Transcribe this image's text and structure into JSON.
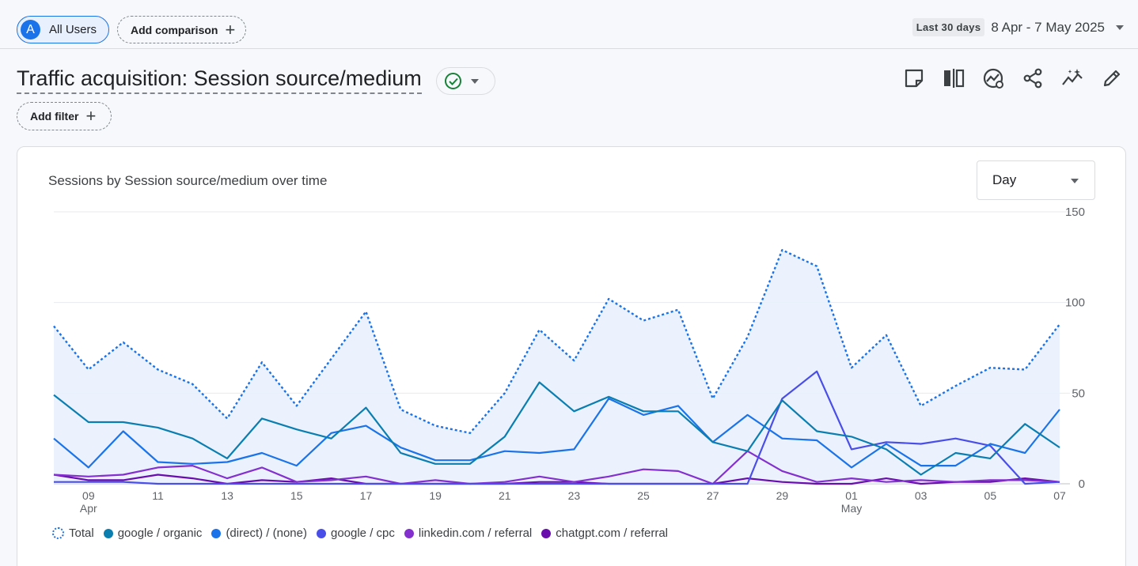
{
  "topbar": {
    "segment_avatar": "A",
    "segment_label": "All Users",
    "compare_label": "Add comparison",
    "date_preset": "Last 30 days",
    "date_range": "8 Apr - 7 May 2025"
  },
  "report": {
    "title": "Traffic acquisition: Session source/medium",
    "filter_label": "Add filter"
  },
  "card": {
    "title": "Sessions by Session source/medium over time",
    "granularity": "Day"
  },
  "chart_data": {
    "type": "line",
    "x": [
      "08",
      "09",
      "10",
      "11",
      "12",
      "13",
      "14",
      "15",
      "16",
      "17",
      "18",
      "19",
      "20",
      "21",
      "22",
      "23",
      "24",
      "25",
      "26",
      "27",
      "28",
      "29",
      "30",
      "01",
      "02",
      "03",
      "04",
      "05",
      "06",
      "07"
    ],
    "x_tick_labels": [
      "09",
      "11",
      "13",
      "15",
      "17",
      "19",
      "21",
      "23",
      "25",
      "27",
      "29",
      "01",
      "03",
      "05",
      "07"
    ],
    "x_month_labels": [
      {
        "at": "09",
        "label": "Apr"
      },
      {
        "at": "01",
        "label": "May"
      }
    ],
    "y_tick_labels": [
      "0",
      "50",
      "100",
      "150"
    ],
    "ylim": [
      0,
      150
    ],
    "series": [
      {
        "name": "Total",
        "style": "dotted",
        "color": "#1a73e8",
        "fill": true,
        "values": [
          87,
          63,
          78,
          63,
          55,
          36,
          67,
          43,
          69,
          95,
          41,
          32,
          28,
          50,
          85,
          68,
          102,
          90,
          96,
          47,
          81,
          129,
          120,
          64,
          82,
          43,
          54,
          64,
          63,
          88
        ]
      },
      {
        "name": "google / organic",
        "color": "#0b7eb0",
        "values": [
          49,
          34,
          34,
          31,
          25,
          14,
          36,
          30,
          25,
          42,
          17,
          11,
          11,
          26,
          56,
          40,
          48,
          40,
          40,
          23,
          18,
          46,
          29,
          26,
          19,
          5,
          17,
          14,
          33,
          20
        ]
      },
      {
        "name": "(direct) / (none)",
        "color": "#1a73e8",
        "values": [
          25,
          9,
          29,
          12,
          11,
          12,
          17,
          10,
          28,
          32,
          20,
          13,
          13,
          18,
          17,
          19,
          47,
          38,
          43,
          23,
          38,
          25,
          24,
          9,
          22,
          10,
          10,
          22,
          17,
          41
        ]
      },
      {
        "name": "google / cpc",
        "color": "#4a4ee8",
        "values": [
          1,
          1,
          1,
          0,
          0,
          0,
          0,
          0,
          0,
          0,
          0,
          0,
          0,
          0,
          0,
          0,
          0,
          0,
          0,
          0,
          0,
          47,
          62,
          19,
          23,
          22,
          25,
          21,
          0,
          1
        ]
      },
      {
        "name": "linkedin.com / referral",
        "color": "#8430ce",
        "values": [
          5,
          4,
          5,
          9,
          10,
          3,
          9,
          1,
          2,
          4,
          0,
          2,
          0,
          1,
          4,
          1,
          4,
          8,
          7,
          0,
          18,
          7,
          1,
          3,
          1,
          2,
          1,
          2,
          2,
          1
        ]
      },
      {
        "name": "chatgpt.com / referral",
        "color": "#6a0dad",
        "values": [
          5,
          2,
          2,
          5,
          3,
          0,
          2,
          1,
          3,
          0,
          0,
          0,
          0,
          0,
          1,
          1,
          0,
          0,
          0,
          0,
          3,
          1,
          0,
          0,
          3,
          0,
          1,
          1,
          3,
          1
        ]
      }
    ]
  }
}
